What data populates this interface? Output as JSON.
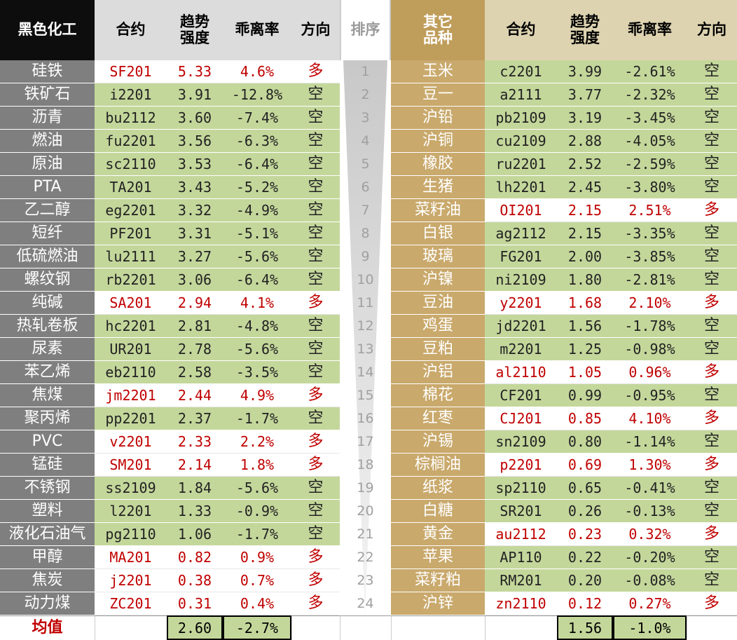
{
  "header": {
    "left": {
      "group": "黑色化工",
      "contract": "合约",
      "strength": [
        "趋势",
        "强度"
      ],
      "deviation": "乖离率",
      "direction": "方向"
    },
    "rank": "排序",
    "right": {
      "group": [
        "其它",
        "品种"
      ],
      "contract": "合约",
      "strength": [
        "趋势",
        "强度"
      ],
      "deviation": "乖离率",
      "direction": "方向"
    }
  },
  "left_rows": [
    [
      "硅铁",
      "SF201",
      "5.33",
      "4.6%",
      "多"
    ],
    [
      "铁矿石",
      "i2201",
      "3.91",
      "-12.8%",
      "空"
    ],
    [
      "沥青",
      "bu2112",
      "3.60",
      "-7.4%",
      "空"
    ],
    [
      "燃油",
      "fu2201",
      "3.56",
      "-6.3%",
      "空"
    ],
    [
      "原油",
      "sc2110",
      "3.53",
      "-6.4%",
      "空"
    ],
    [
      "PTA",
      "TA201",
      "3.43",
      "-5.2%",
      "空"
    ],
    [
      "乙二醇",
      "eg2201",
      "3.32",
      "-4.9%",
      "空"
    ],
    [
      "短纤",
      "PF201",
      "3.31",
      "-5.1%",
      "空"
    ],
    [
      "低硫燃油",
      "lu2111",
      "3.27",
      "-5.6%",
      "空"
    ],
    [
      "螺纹钢",
      "rb2201",
      "3.06",
      "-6.4%",
      "空"
    ],
    [
      "纯碱",
      "SA201",
      "2.94",
      "4.1%",
      "多"
    ],
    [
      "热轧卷板",
      "hc2201",
      "2.81",
      "-4.8%",
      "空"
    ],
    [
      "尿素",
      "UR201",
      "2.78",
      "-5.6%",
      "空"
    ],
    [
      "苯乙烯",
      "eb2110",
      "2.58",
      "-3.5%",
      "空"
    ],
    [
      "焦煤",
      "jm2201",
      "2.44",
      "4.9%",
      "多"
    ],
    [
      "聚丙烯",
      "pp2201",
      "2.37",
      "-1.7%",
      "空"
    ],
    [
      "PVC",
      "v2201",
      "2.33",
      "2.2%",
      "多"
    ],
    [
      "锰硅",
      "SM201",
      "2.14",
      "1.8%",
      "多"
    ],
    [
      "不锈钢",
      "ss2109",
      "1.84",
      "-5.6%",
      "空"
    ],
    [
      "塑料",
      "l2201",
      "1.33",
      "-0.9%",
      "空"
    ],
    [
      "液化石油气",
      "pg2110",
      "1.06",
      "-1.7%",
      "空"
    ],
    [
      "甲醇",
      "MA201",
      "0.82",
      "0.9%",
      "多"
    ],
    [
      "焦炭",
      "j2201",
      "0.38",
      "0.7%",
      "多"
    ],
    [
      "动力煤",
      "ZC201",
      "0.31",
      "0.4%",
      "多"
    ]
  ],
  "ranks": [
    "1",
    "2",
    "3",
    "4",
    "5",
    "6",
    "7",
    "8",
    "9",
    "10",
    "11",
    "12",
    "13",
    "14",
    "15",
    "16",
    "17",
    "18",
    "19",
    "20",
    "21",
    "22",
    "23",
    "24"
  ],
  "right_rows": [
    [
      "玉米",
      "c2201",
      "3.99",
      "-2.61%",
      "空"
    ],
    [
      "豆一",
      "a2111",
      "3.77",
      "-2.32%",
      "空"
    ],
    [
      "沪铅",
      "pb2109",
      "3.19",
      "-3.45%",
      "空"
    ],
    [
      "沪铜",
      "cu2109",
      "2.88",
      "-4.05%",
      "空"
    ],
    [
      "橡胶",
      "ru2201",
      "2.52",
      "-2.59%",
      "空"
    ],
    [
      "生猪",
      "lh2201",
      "2.45",
      "-3.80%",
      "空"
    ],
    [
      "菜籽油",
      "OI201",
      "2.15",
      "2.51%",
      "多"
    ],
    [
      "白银",
      "ag2112",
      "2.15",
      "-3.35%",
      "空"
    ],
    [
      "玻璃",
      "FG201",
      "2.00",
      "-3.85%",
      "空"
    ],
    [
      "沪镍",
      "ni2109",
      "1.80",
      "-2.81%",
      "空"
    ],
    [
      "豆油",
      "y2201",
      "1.68",
      "2.10%",
      "多"
    ],
    [
      "鸡蛋",
      "jd2201",
      "1.56",
      "-1.78%",
      "空"
    ],
    [
      "豆粕",
      "m2201",
      "1.25",
      "-0.98%",
      "空"
    ],
    [
      "沪铝",
      "al2110",
      "1.05",
      "0.96%",
      "多"
    ],
    [
      "棉花",
      "CF201",
      "0.99",
      "-0.95%",
      "空"
    ],
    [
      "红枣",
      "CJ201",
      "0.85",
      "4.10%",
      "多"
    ],
    [
      "沪锡",
      "sn2109",
      "0.80",
      "-1.14%",
      "空"
    ],
    [
      "棕榈油",
      "p2201",
      "0.69",
      "1.30%",
      "多"
    ],
    [
      "纸浆",
      "sp2110",
      "0.65",
      "-0.41%",
      "空"
    ],
    [
      "白糖",
      "SR201",
      "0.26",
      "-0.13%",
      "空"
    ],
    [
      "黄金",
      "au2112",
      "0.23",
      "0.32%",
      "多"
    ],
    [
      "苹果",
      "AP110",
      "0.22",
      "-0.20%",
      "空"
    ],
    [
      "菜籽粕",
      "RM201",
      "0.20",
      "-0.08%",
      "空"
    ],
    [
      "沪锌",
      "zn2110",
      "0.12",
      "0.27%",
      "多"
    ]
  ],
  "footer": {
    "label": "均值",
    "left": [
      "2.60",
      "-2.7%"
    ],
    "right": [
      "1.56",
      "-1.0%"
    ]
  }
}
